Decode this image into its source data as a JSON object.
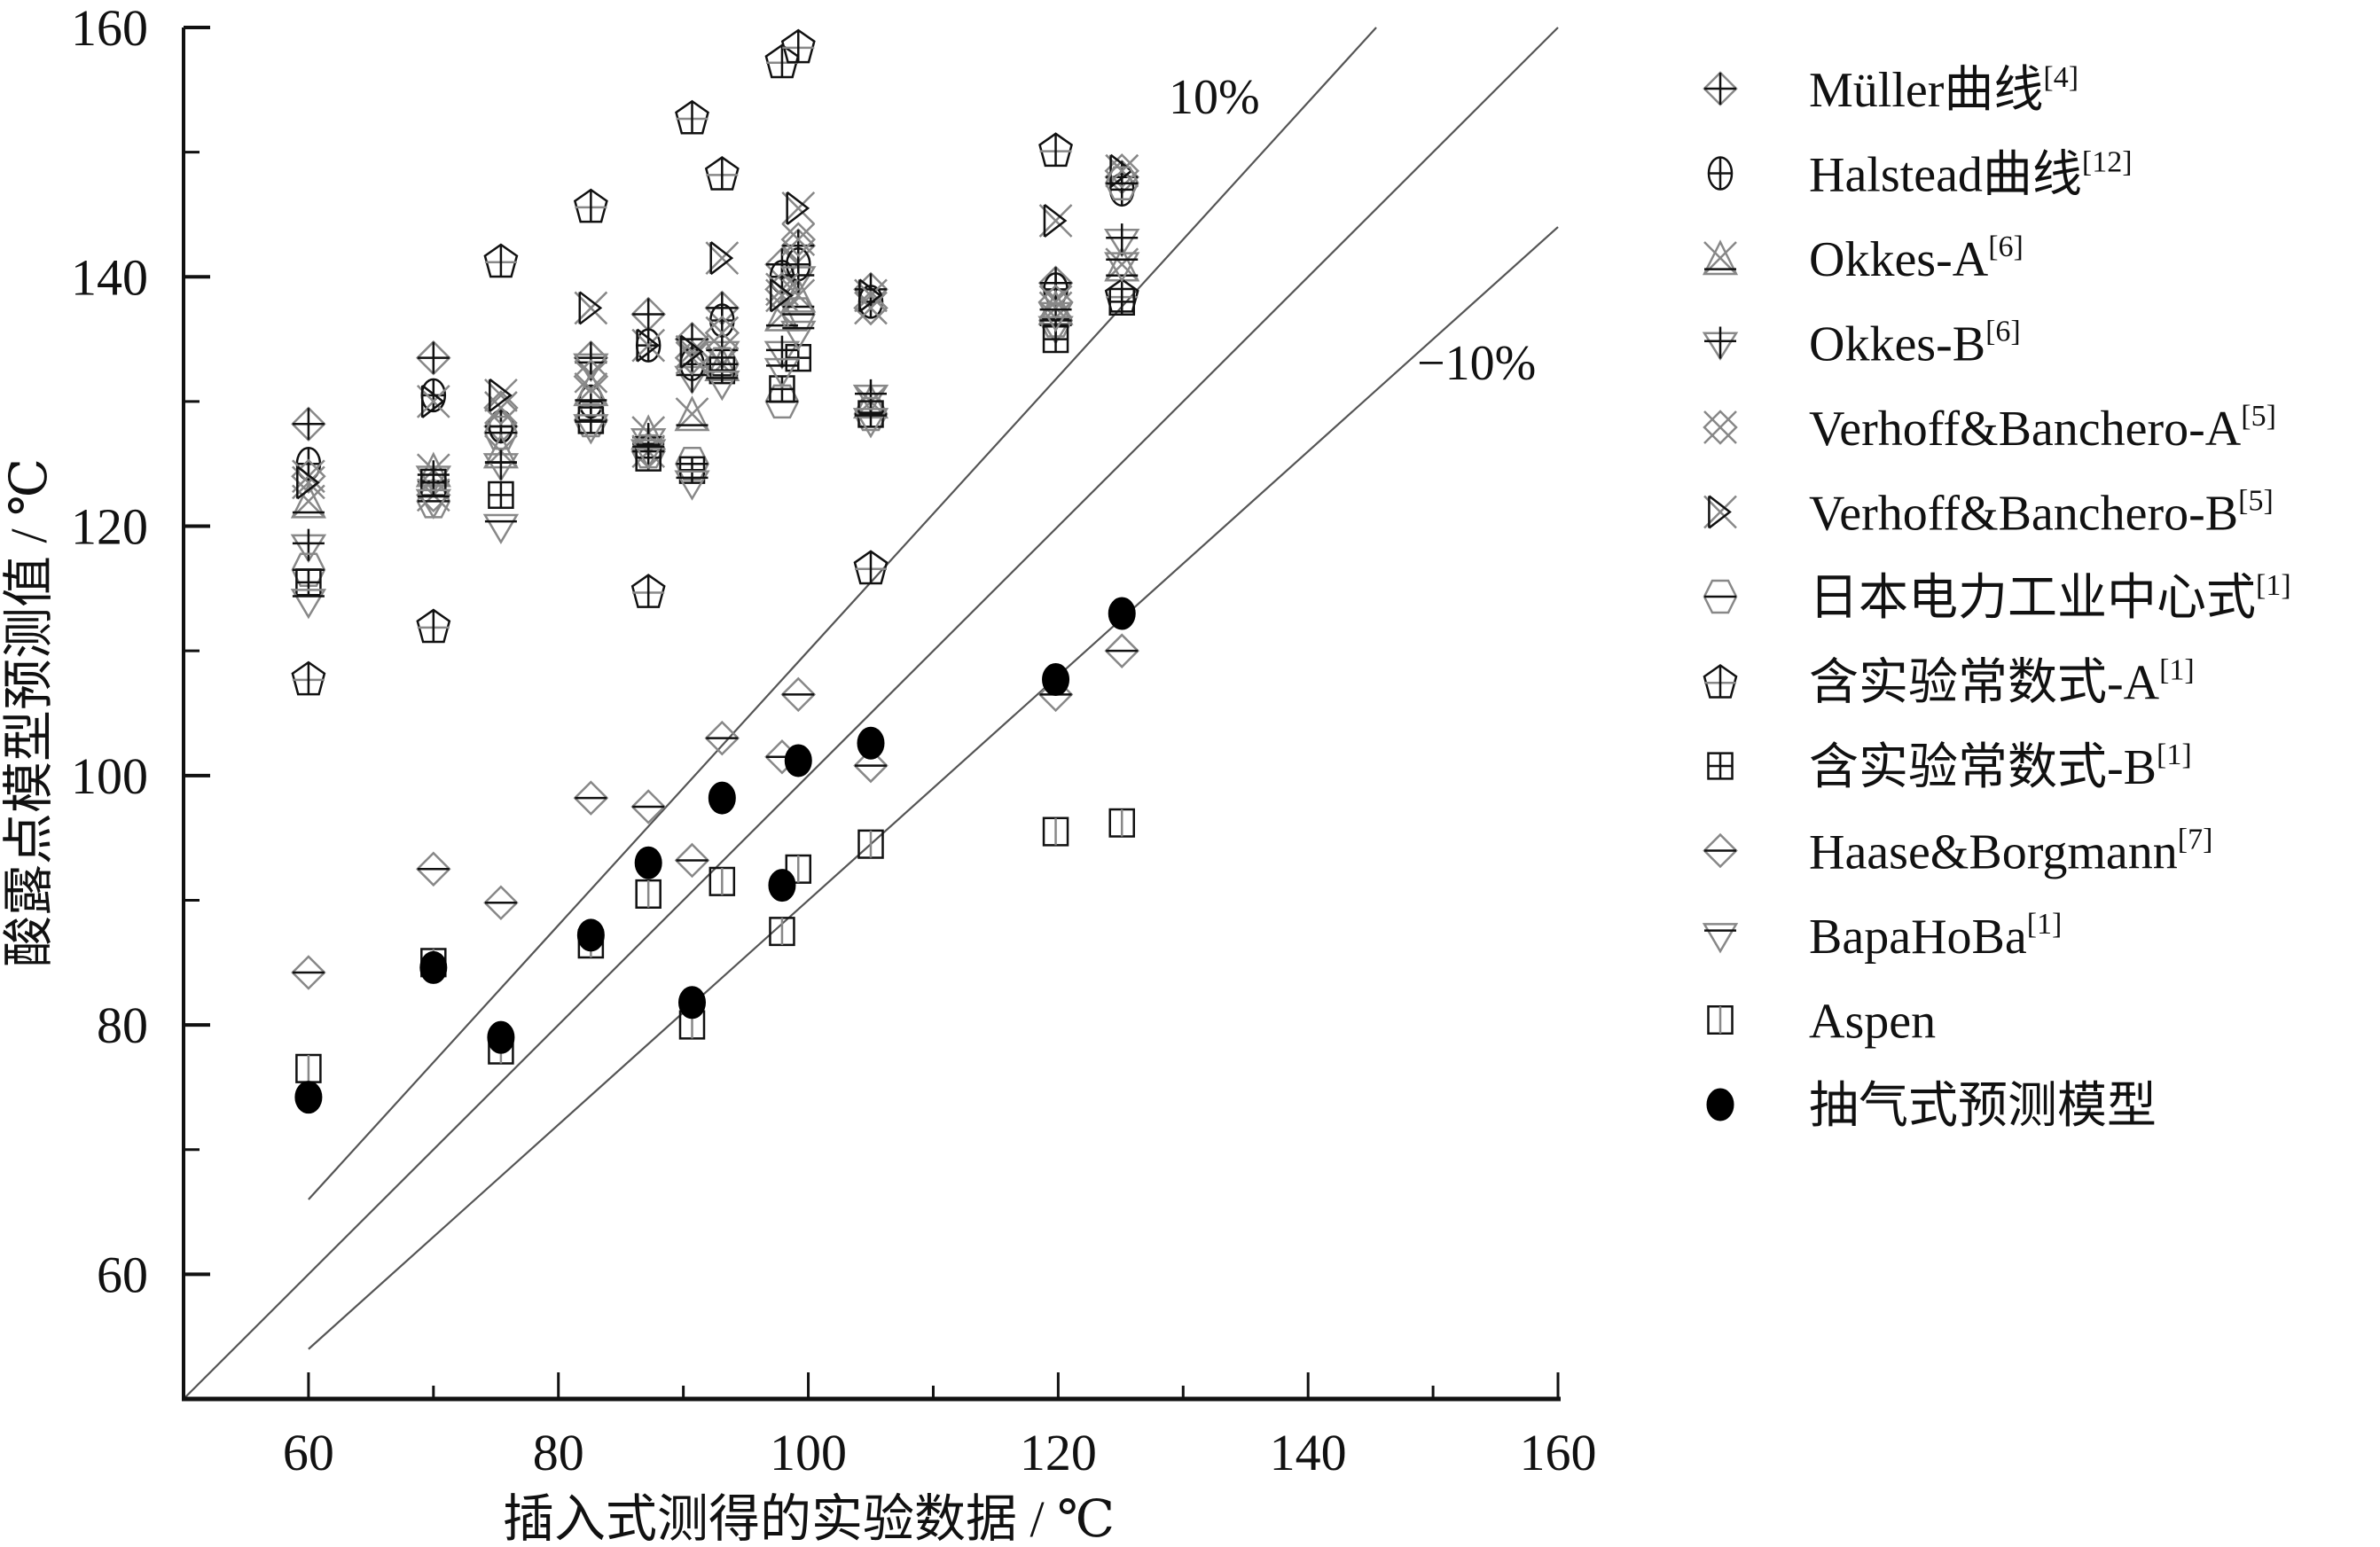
{
  "chart_data": {
    "type": "scatter",
    "title": "",
    "xlabel": "插入式测得的实验数据 / ℃",
    "ylabel": "酸露点模型预测值 / ℃",
    "xlim": [
      50,
      160
    ],
    "ylim": [
      50,
      160
    ],
    "x_ticks": [
      60,
      80,
      100,
      120,
      140,
      160
    ],
    "y_ticks": [
      60,
      80,
      100,
      120,
      140,
      160
    ],
    "x_minor_ticks": [
      70,
      90,
      110,
      130,
      150
    ],
    "y_minor_ticks": [
      70,
      90,
      110,
      130,
      150
    ],
    "grid": false,
    "legend_position": "right",
    "reference_lines": [
      {
        "name": "y=x",
        "slope": 1.0,
        "label": ""
      },
      {
        "name": "+10%",
        "slope": 1.1,
        "label": "10%"
      },
      {
        "name": "-10%",
        "slope": 0.9,
        "label": "−10%"
      }
    ],
    "x": [
      60,
      70,
      75.4,
      82.6,
      87.2,
      90.7,
      93.1,
      97.9,
      99.2,
      105,
      119.8,
      125.1
    ],
    "series": [
      {
        "name": "Müller曲线",
        "ref": "[4]",
        "marker": "diamond-cross",
        "values": [
          128.2,
          133.5,
          128.0,
          133.5,
          137.0,
          135.0,
          137.5,
          141.0,
          142.5,
          139.0,
          139.5,
          148.0
        ]
      },
      {
        "name": "Halstead曲线",
        "ref": "[12]",
        "marker": "ellipse-cross",
        "values": [
          125.0,
          130.5,
          128.0,
          130.0,
          134.5,
          133.0,
          136.5,
          140.0,
          141.0,
          138.0,
          139.0,
          147.0
        ]
      },
      {
        "name": "Okkes-A",
        "ref": "[6]",
        "marker": "triangle-x",
        "values": [
          122.0,
          124.5,
          126.0,
          131.0,
          127.5,
          129.0,
          133.0,
          137.0,
          138.5,
          130.0,
          137.5,
          141.0
        ]
      },
      {
        "name": "Okkes-B",
        "ref": "[6]",
        "marker": "triangle-down-cross",
        "values": [
          118.5,
          124.0,
          125.0,
          133.0,
          127.0,
          132.0,
          134.0,
          134.0,
          140.0,
          130.5,
          136.0,
          143.0
        ]
      },
      {
        "name": "Verhoff&Banchero-A",
        "ref": "[5]",
        "marker": "double-x",
        "values": [
          124.0,
          122.5,
          129.5,
          132.0,
          126.0,
          133.5,
          135.5,
          139.0,
          143.0,
          137.5,
          138.0,
          148.5
        ]
      },
      {
        "name": "Verhoff&Banchero-B",
        "ref": "[5]",
        "marker": "bowtie",
        "values": [
          123.5,
          130.0,
          130.5,
          137.5,
          134.5,
          134.0,
          141.5,
          138.5,
          145.5,
          138.5,
          144.5,
          148.5
        ]
      },
      {
        "name": "日本电力工业中心式",
        "ref": "[1]",
        "marker": "hexagon-line",
        "values": [
          116.5,
          122.0,
          127.5,
          128.5,
          126.0,
          125.0,
          133.0,
          130.0,
          137.0,
          129.0,
          136.5,
          147.5
        ]
      },
      {
        "name": "含实验常数式-A",
        "ref": "[1]",
        "marker": "pentagon-cross",
        "values": [
          107.8,
          112.0,
          141.3,
          145.7,
          114.8,
          152.8,
          148.3,
          157.3,
          158.5,
          116.7,
          150.2,
          138.5
        ]
      },
      {
        "name": "含实验常数式-B",
        "ref": "[1]",
        "marker": "square-cross",
        "values": [
          115.5,
          123.5,
          122.5,
          128.5,
          125.5,
          124.5,
          132.5,
          131.0,
          133.5,
          129.0,
          135.0,
          138.0
        ]
      },
      {
        "name": "Haase&Borgmann",
        "ref": "[7]",
        "marker": "diamond-line",
        "values": [
          84.2,
          92.5,
          89.8,
          98.2,
          97.5,
          93.2,
          103.0,
          101.5,
          106.5,
          100.8,
          106.5,
          110.0
        ]
      },
      {
        "name": "BapaHoBa",
        "ref": "[1]",
        "marker": "triangle-down-line",
        "values": [
          114.0,
          122.0,
          120.0,
          128.0,
          126.0,
          123.5,
          131.5,
          132.5,
          135.5,
          128.5,
          137.0,
          141.0
        ]
      },
      {
        "name": "Aspen",
        "ref": "",
        "marker": "square-bar",
        "values": [
          76.5,
          85.0,
          78.0,
          86.5,
          90.5,
          80.0,
          91.5,
          87.5,
          92.5,
          94.5,
          95.5,
          96.2
        ]
      },
      {
        "name": "抽气式预测模型",
        "ref": "",
        "marker": "filled-circle",
        "values": [
          74.2,
          84.6,
          79.0,
          87.2,
          93.0,
          81.8,
          98.2,
          91.2,
          101.2,
          102.6,
          107.7,
          113.0
        ]
      }
    ]
  },
  "annotations": {
    "plus10": "10%",
    "minus10": "−10%"
  }
}
